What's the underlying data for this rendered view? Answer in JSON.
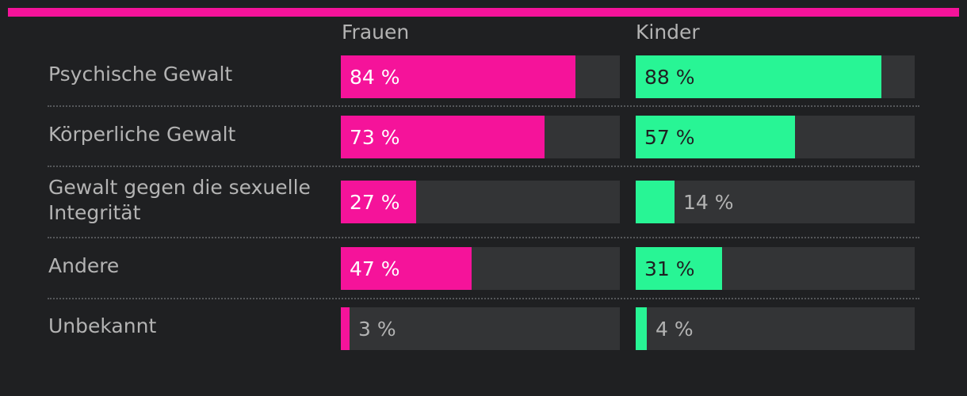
{
  "chart_data": {
    "type": "bar",
    "orientation": "horizontal",
    "title": "",
    "xlabel": "",
    "ylabel": "",
    "xlim": [
      0,
      100
    ],
    "unit": "%",
    "categories": [
      "Psychische Gewalt",
      "Körperliche Gewalt",
      "Gewalt gegen die sexuelle Integrität",
      "Andere",
      "Unbekannt"
    ],
    "series": [
      {
        "name": "Frauen",
        "color": "#f5139a",
        "values": [
          84,
          73,
          27,
          47,
          3
        ],
        "labels": [
          "84 %",
          "73 %",
          "27 %",
          "47 %",
          "3 %"
        ]
      },
      {
        "name": "Kinder",
        "color": "#28f595",
        "values": [
          88,
          57,
          14,
          31,
          4
        ],
        "labels": [
          "88 %",
          "57 %",
          "14 %",
          "31 %",
          "4 %"
        ]
      }
    ]
  },
  "colors": {
    "accent": "#f5139a",
    "track": "#333436",
    "background": "#1f2022",
    "text_muted": "#b3b3b3",
    "label_on_pink": "#ffffff",
    "label_on_green": "#1f2022"
  }
}
